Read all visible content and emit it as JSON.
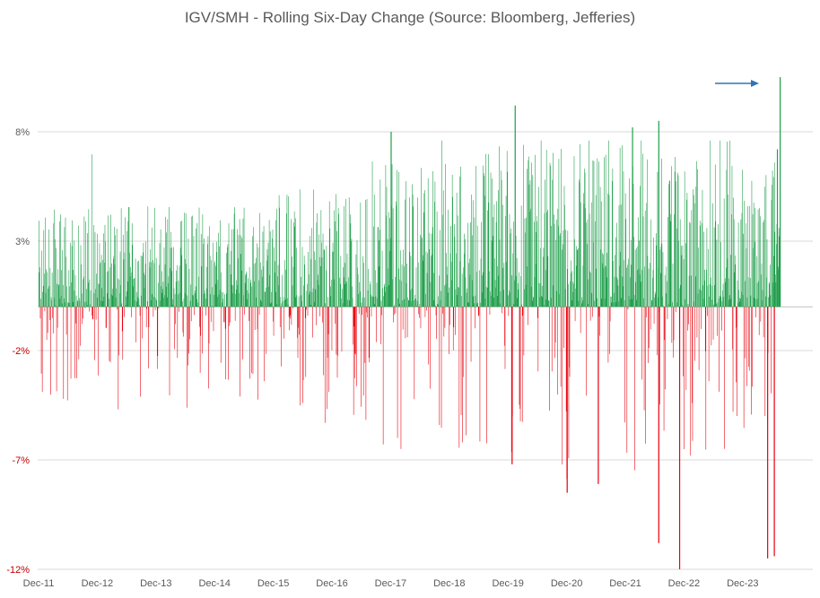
{
  "chart_data": {
    "type": "bar",
    "title": "IGV/SMH - Rolling Six-Day Change (Source: Bloomberg, Jefferies)",
    "xlabel": "",
    "ylabel": "",
    "ylim": [
      -12,
      12
    ],
    "y_ticks": [
      {
        "value": 8,
        "label": "8%"
      },
      {
        "value": 3,
        "label": "3%"
      },
      {
        "value": -2,
        "label": "-2%"
      },
      {
        "value": -7,
        "label": "-7%"
      },
      {
        "value": -12,
        "label": "-12%"
      }
    ],
    "x_ticks": [
      "Dec-11",
      "Dec-12",
      "Dec-13",
      "Dec-14",
      "Dec-15",
      "Dec-16",
      "Dec-17",
      "Dec-18",
      "Dec-19",
      "Dec-20",
      "Dec-21",
      "Dec-22",
      "Dec-23"
    ],
    "x_range": [
      "Dec-11",
      "Jul-24"
    ],
    "grid": true,
    "legend": "none",
    "colors": {
      "positive": "#1e9e4a",
      "negative": "#e8000b",
      "arrow": "#2e75b6",
      "grid": "#d9d9d9"
    },
    "annotation": {
      "type": "arrow",
      "points_to": "latest spike"
    },
    "notable_values": [
      {
        "date": "Dec-17",
        "value": 8.0
      },
      {
        "date": "Jan-20",
        "value": 9.2
      },
      {
        "date": "Dec-19",
        "value": -7.2
      },
      {
        "date": "Dec-20",
        "value": -8.5
      },
      {
        "date": "Jun-21",
        "value": -8.1
      },
      {
        "date": "Jun-22",
        "value": -10.8
      },
      {
        "date": "Nov-22",
        "value": -12.0
      },
      {
        "date": "Jan-22",
        "value": 8.2
      },
      {
        "date": "Jun-22",
        "value": 8.5
      },
      {
        "date": "May-24",
        "value": -11.5
      },
      {
        "date": "Jun-24",
        "value": -11.4
      },
      {
        "date": "Jul-24",
        "value": 10.5
      },
      {
        "date": "Jul-24",
        "value": 7.2
      }
    ]
  }
}
